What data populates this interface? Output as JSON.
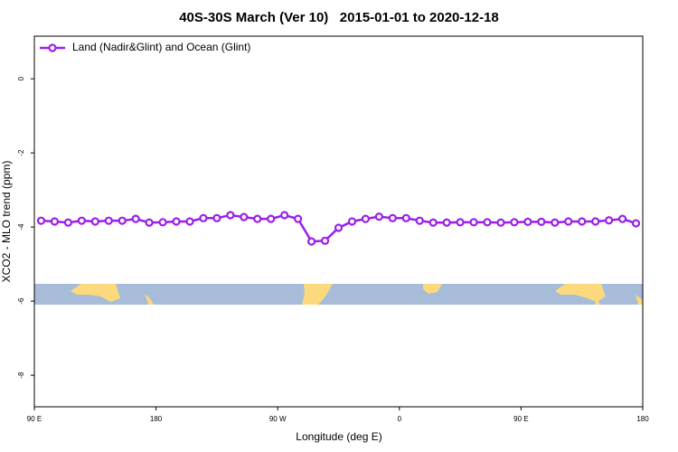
{
  "chart_data": {
    "type": "line",
    "title": "40S-30S March (Ver 10)   2015-01-01 to 2020-12-18",
    "x_label": "Longitude (deg E)",
    "y_label": "XCO2 - MLO trend (ppm)",
    "x": [
      95,
      105,
      115,
      125,
      135,
      145,
      155,
      165,
      175,
      185,
      195,
      205,
      215,
      225,
      235,
      245,
      255,
      265,
      275,
      285,
      295,
      305,
      315,
      325,
      335,
      345,
      355,
      365,
      375,
      385,
      395,
      405,
      415,
      425,
      435,
      445,
      455,
      465,
      475,
      485,
      495,
      505,
      515,
      525,
      535
    ],
    "series": [
      {
        "name": "Land (Nadir&Glint) and Ocean (Glint)",
        "color": "#9b1fe8",
        "values": [
          -3.83,
          -3.85,
          -3.88,
          -3.83,
          -3.85,
          -3.83,
          -3.83,
          -3.78,
          -3.88,
          -3.87,
          -3.85,
          -3.85,
          -3.76,
          -3.76,
          -3.68,
          -3.73,
          -3.78,
          -3.78,
          -3.68,
          -3.78,
          -4.39,
          -4.37,
          -4.02,
          -3.85,
          -3.78,
          -3.72,
          -3.76,
          -3.76,
          -3.83,
          -3.88,
          -3.88,
          -3.87,
          -3.87,
          -3.87,
          -3.88,
          -3.87,
          -3.86,
          -3.86,
          -3.88,
          -3.85,
          -3.85,
          -3.85,
          -3.82,
          -3.78,
          -3.9
        ]
      }
    ],
    "xlim": [
      90,
      540
    ],
    "xticks": [
      {
        "value": 90,
        "label": "90 E"
      },
      180,
      {
        "value": 270,
        "label": "90 W"
      },
      {
        "value": 360,
        "label": "0"
      },
      {
        "value": 450,
        "label": "90 E"
      },
      {
        "value": 540,
        "label": "180"
      }
    ],
    "ylim": [
      -8.85,
      1.15
    ],
    "yticks": [
      0,
      -2,
      -4,
      -6,
      -8
    ],
    "legend": "top-left"
  }
}
